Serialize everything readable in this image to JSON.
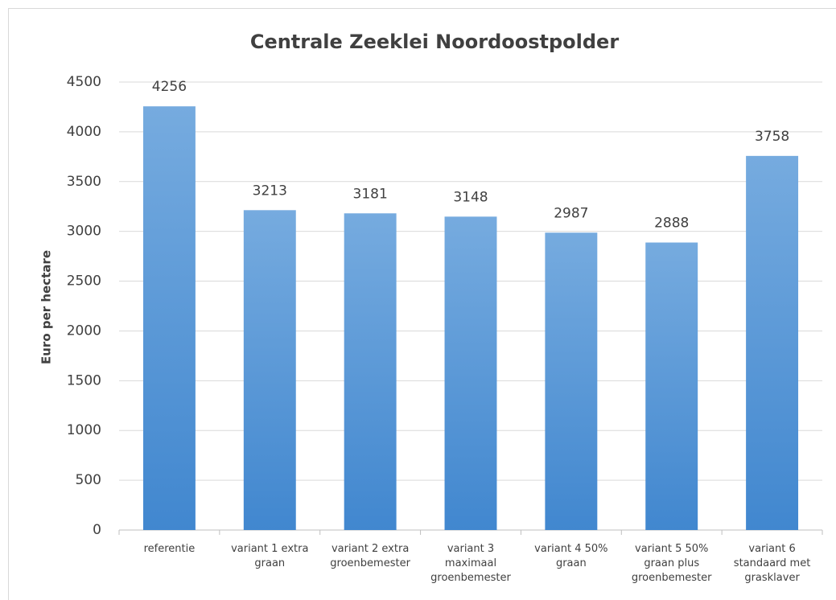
{
  "chart_data": {
    "type": "bar",
    "title": "Centrale Zeeklei Noordoostpolder",
    "y_label": "Euro per hectare",
    "categories": [
      "referentie",
      "variant 1 extra graan",
      "variant 2 extra groenbemester",
      "variant 3 maximaal groenbemester",
      "variant 4 50% graan",
      "variant 5 50% graan plus groenbemester",
      "variant 6 standaard met grasklaver"
    ],
    "values": [
      4256,
      3213,
      3181,
      3148,
      2987,
      2888,
      3758
    ],
    "color": "#5b9bd5",
    "ylim": [
      0,
      4500
    ],
    "yticks": [
      0,
      500,
      1000,
      1500,
      2000,
      2500,
      3000,
      3500,
      4000,
      4500
    ],
    "grid": true
  }
}
